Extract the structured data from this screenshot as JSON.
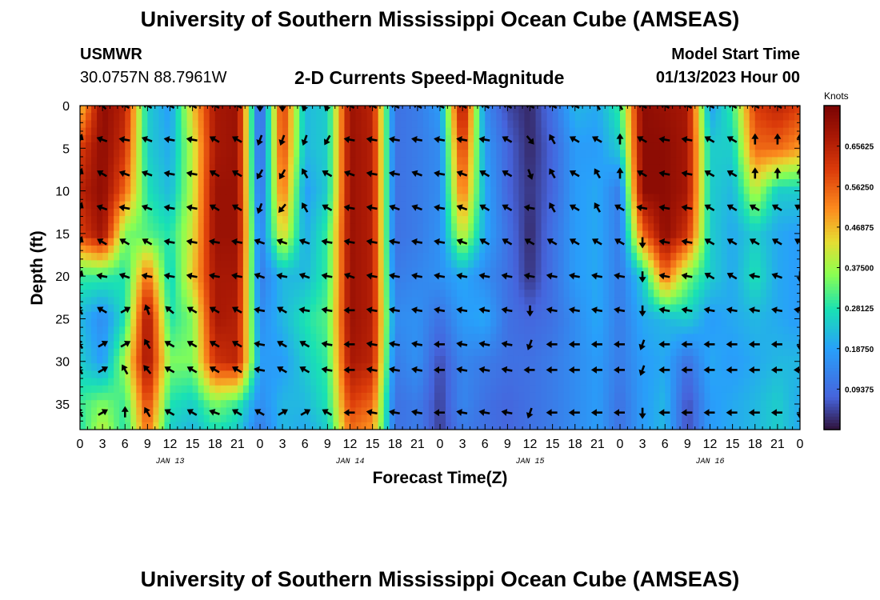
{
  "header": {
    "title": "University of Southern Mississippi Ocean Cube (AMSEAS)",
    "station": "USMWR",
    "coords": "30.0757N  88.7961W",
    "subtitle": "2-D Currents Speed-Magnitude",
    "model_start_label": "Model Start Time",
    "model_start_value": "01/13/2023 Hour 00"
  },
  "footer": {
    "title": "University of Southern Mississippi Ocean Cube (AMSEAS)"
  },
  "colors": {
    "axis": "#000000",
    "arrow": "#000000"
  },
  "chart_data": {
    "type": "heatmap",
    "title": "2-D Currents Speed-Magnitude",
    "xlabel": "Forecast Time(Z)",
    "ylabel": "Depth (ft)",
    "x_tick_labels": [
      "0",
      "3",
      "6",
      "9",
      "12",
      "15",
      "18",
      "21",
      "0",
      "3",
      "6",
      "9",
      "12",
      "15",
      "18",
      "21",
      "0",
      "3",
      "6",
      "9",
      "12",
      "15",
      "18",
      "21",
      "0",
      "3",
      "6",
      "9",
      "12",
      "15",
      "18",
      "21",
      "0"
    ],
    "date_labels": [
      {
        "label": "JAN 13",
        "hour": 12
      },
      {
        "label": "JAN 14",
        "hour": 36
      },
      {
        "label": "JAN 15",
        "hour": 60
      },
      {
        "label": "JAN 16",
        "hour": 84
      }
    ],
    "xlim": [
      0,
      96
    ],
    "y_ticks": [
      0,
      5,
      10,
      15,
      20,
      25,
      30,
      35
    ],
    "ylim": [
      0,
      38
    ],
    "colorbar": {
      "label": "Knots",
      "range": [
        0,
        0.75
      ],
      "ticks": [
        0.09375,
        0.1875,
        0.28125,
        0.375,
        0.46875,
        0.5625,
        0.65625
      ],
      "tick_labels": [
        "0.09375",
        "0.18750",
        "0.28125",
        "0.37500",
        "0.46875",
        "0.56250",
        "0.65625"
      ]
    },
    "speed_grid": {
      "hours": [
        0,
        3,
        6,
        9,
        12,
        15,
        18,
        21,
        24,
        27,
        30,
        33,
        36,
        39,
        42,
        45,
        48,
        51,
        54,
        57,
        60,
        63,
        66,
        69,
        72,
        75,
        78,
        81,
        84,
        87,
        90,
        93,
        96
      ],
      "depths": [
        0,
        5,
        10,
        15,
        20,
        25,
        30,
        35,
        38
      ],
      "values": [
        [
          0.45,
          0.72,
          0.65,
          0.25,
          0.18,
          0.45,
          0.68,
          0.7,
          0.05,
          0.62,
          0.22,
          0.25,
          0.7,
          0.65,
          0.1,
          0.12,
          0.18,
          0.7,
          0.15,
          0.05,
          0.02,
          0.1,
          0.22,
          0.2,
          0.3,
          0.72,
          0.7,
          0.68,
          0.18,
          0.3,
          0.6,
          0.65,
          0.6
        ],
        [
          0.6,
          0.72,
          0.62,
          0.25,
          0.2,
          0.4,
          0.68,
          0.7,
          0.06,
          0.6,
          0.22,
          0.25,
          0.7,
          0.66,
          0.1,
          0.12,
          0.15,
          0.62,
          0.18,
          0.08,
          0.02,
          0.08,
          0.18,
          0.18,
          0.25,
          0.72,
          0.72,
          0.68,
          0.25,
          0.25,
          0.55,
          0.55,
          0.5
        ],
        [
          0.65,
          0.72,
          0.55,
          0.28,
          0.22,
          0.4,
          0.7,
          0.7,
          0.08,
          0.55,
          0.18,
          0.25,
          0.7,
          0.66,
          0.1,
          0.12,
          0.15,
          0.55,
          0.2,
          0.08,
          0.03,
          0.08,
          0.18,
          0.2,
          0.12,
          0.72,
          0.72,
          0.68,
          0.25,
          0.22,
          0.4,
          0.25,
          0.25
        ],
        [
          0.6,
          0.7,
          0.35,
          0.32,
          0.28,
          0.42,
          0.7,
          0.7,
          0.12,
          0.45,
          0.2,
          0.3,
          0.7,
          0.66,
          0.1,
          0.12,
          0.16,
          0.42,
          0.2,
          0.1,
          0.02,
          0.1,
          0.18,
          0.2,
          0.12,
          0.55,
          0.72,
          0.62,
          0.25,
          0.2,
          0.25,
          0.2,
          0.18
        ],
        [
          0.3,
          0.3,
          0.28,
          0.55,
          0.25,
          0.45,
          0.68,
          0.68,
          0.12,
          0.22,
          0.22,
          0.3,
          0.7,
          0.66,
          0.12,
          0.14,
          0.16,
          0.2,
          0.15,
          0.1,
          0.03,
          0.1,
          0.18,
          0.2,
          0.12,
          0.25,
          0.55,
          0.35,
          0.25,
          0.2,
          0.28,
          0.2,
          0.18
        ],
        [
          0.22,
          0.15,
          0.28,
          0.7,
          0.28,
          0.35,
          0.68,
          0.66,
          0.15,
          0.22,
          0.28,
          0.32,
          0.7,
          0.66,
          0.15,
          0.16,
          0.1,
          0.18,
          0.2,
          0.1,
          0.08,
          0.1,
          0.15,
          0.2,
          0.12,
          0.2,
          0.22,
          0.25,
          0.18,
          0.2,
          0.22,
          0.2,
          0.18
        ],
        [
          0.25,
          0.18,
          0.38,
          0.7,
          0.35,
          0.35,
          0.62,
          0.65,
          0.18,
          0.18,
          0.25,
          0.3,
          0.68,
          0.65,
          0.12,
          0.16,
          0.05,
          0.14,
          0.12,
          0.1,
          0.1,
          0.12,
          0.15,
          0.18,
          0.12,
          0.18,
          0.2,
          0.1,
          0.2,
          0.18,
          0.2,
          0.22,
          0.22
        ],
        [
          0.3,
          0.35,
          0.3,
          0.6,
          0.28,
          0.25,
          0.35,
          0.3,
          0.15,
          0.22,
          0.22,
          0.28,
          0.6,
          0.55,
          0.1,
          0.12,
          0.04,
          0.14,
          0.1,
          0.08,
          0.1,
          0.12,
          0.15,
          0.18,
          0.1,
          0.18,
          0.22,
          0.05,
          0.18,
          0.2,
          0.22,
          0.25,
          0.2
        ],
        [
          0.28,
          0.4,
          0.28,
          0.55,
          0.25,
          0.22,
          0.28,
          0.25,
          0.12,
          0.22,
          0.2,
          0.25,
          0.55,
          0.5,
          0.1,
          0.12,
          0.04,
          0.12,
          0.1,
          0.08,
          0.1,
          0.12,
          0.15,
          0.18,
          0.1,
          0.18,
          0.22,
          0.05,
          0.18,
          0.2,
          0.22,
          0.25,
          0.2
        ]
      ]
    },
    "current_arrows": {
      "note": "direction in degrees clockwise from north, one arrow per grid cell",
      "hours": [
        0,
        3,
        6,
        9,
        12,
        15,
        18,
        21,
        24,
        27,
        30,
        33,
        36,
        39,
        42,
        45,
        48,
        51,
        54,
        57,
        60,
        63,
        66,
        69,
        72,
        75,
        78,
        81,
        84,
        87,
        90,
        93,
        96
      ],
      "depths": [
        0,
        4,
        8,
        12,
        16,
        20,
        24,
        28,
        31,
        36
      ],
      "direction_deg": [
        [
          20,
          315,
          300,
          300,
          300,
          300,
          300,
          300,
          180,
          180,
          200,
          200,
          300,
          300,
          300,
          300,
          300,
          300,
          300,
          300,
          300,
          300,
          300,
          330,
          330,
          300,
          300,
          300,
          300,
          300,
          300,
          300,
          300
        ],
        [
          20,
          290,
          280,
          290,
          280,
          280,
          300,
          300,
          200,
          200,
          200,
          210,
          280,
          280,
          280,
          280,
          280,
          280,
          280,
          300,
          140,
          330,
          300,
          300,
          0,
          300,
          280,
          280,
          300,
          300,
          0,
          0,
          0
        ],
        [
          20,
          300,
          290,
          290,
          280,
          280,
          300,
          300,
          210,
          210,
          330,
          300,
          290,
          280,
          280,
          290,
          280,
          290,
          300,
          300,
          160,
          330,
          300,
          330,
          0,
          300,
          280,
          280,
          300,
          300,
          0,
          0,
          0
        ],
        [
          20,
          290,
          280,
          290,
          280,
          280,
          300,
          300,
          200,
          220,
          330,
          300,
          280,
          280,
          290,
          290,
          280,
          290,
          300,
          300,
          280,
          330,
          300,
          330,
          300,
          280,
          280,
          280,
          300,
          300,
          300,
          300,
          300
        ],
        [
          20,
          300,
          300,
          300,
          280,
          280,
          280,
          280,
          290,
          290,
          290,
          280,
          280,
          280,
          280,
          280,
          280,
          290,
          300,
          300,
          300,
          300,
          300,
          300,
          300,
          180,
          280,
          280,
          300,
          300,
          300,
          300,
          300
        ],
        [
          20,
          280,
          290,
          280,
          280,
          280,
          280,
          280,
          290,
          280,
          290,
          280,
          290,
          280,
          280,
          280,
          280,
          280,
          280,
          280,
          280,
          280,
          280,
          280,
          280,
          180,
          280,
          280,
          300,
          300,
          280,
          290,
          180
        ],
        [
          330,
          300,
          60,
          340,
          310,
          300,
          300,
          300,
          280,
          300,
          280,
          280,
          270,
          280,
          280,
          280,
          280,
          280,
          280,
          280,
          180,
          280,
          280,
          280,
          280,
          180,
          280,
          280,
          280,
          280,
          280,
          280,
          280
        ],
        [
          330,
          60,
          60,
          330,
          300,
          300,
          300,
          300,
          280,
          300,
          300,
          280,
          270,
          280,
          280,
          280,
          270,
          280,
          280,
          280,
          200,
          270,
          270,
          270,
          270,
          200,
          270,
          270,
          270,
          270,
          270,
          270,
          180
        ],
        [
          330,
          60,
          330,
          320,
          300,
          300,
          300,
          300,
          280,
          300,
          300,
          280,
          270,
          280,
          280,
          280,
          270,
          280,
          280,
          280,
          270,
          270,
          270,
          270,
          270,
          200,
          270,
          270,
          270,
          270,
          270,
          270,
          270
        ],
        [
          330,
          60,
          0,
          330,
          300,
          300,
          290,
          300,
          300,
          60,
          60,
          300,
          270,
          280,
          280,
          280,
          270,
          280,
          280,
          280,
          200,
          270,
          270,
          270,
          270,
          180,
          270,
          270,
          270,
          270,
          270,
          270,
          180
        ]
      ]
    }
  }
}
